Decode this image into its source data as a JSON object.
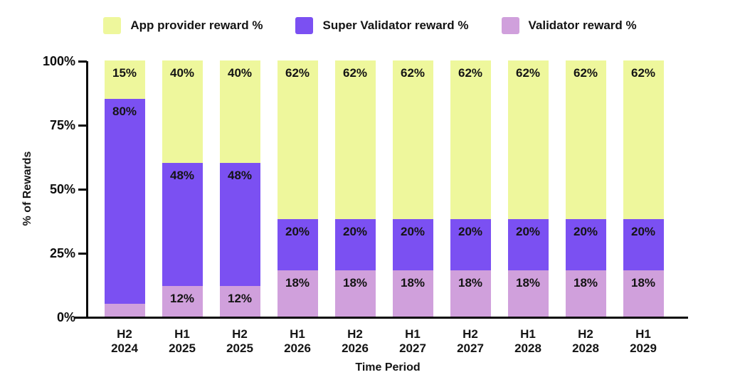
{
  "page": {
    "background": "#ffffff",
    "text_color": "#141414",
    "axis_color": "#0a0a0a"
  },
  "legend": {
    "items": [
      {
        "label": "App provider reward %",
        "color": "#eef79c"
      },
      {
        "label": "Super Validator reward %",
        "color": "#7b50f2"
      },
      {
        "label": "Validator reward %",
        "color": "#d0a0dc"
      }
    ]
  },
  "chart_data": {
    "type": "bar",
    "stacked": true,
    "xlabel": "Time Period",
    "ylabel": "% of Rewards",
    "ylim": [
      0,
      100
    ],
    "grid": false,
    "legend_position": "top",
    "categories": [
      "H2 2024",
      "H1 2025",
      "H2 2025",
      "H1 2026",
      "H2 2026",
      "H1 2027",
      "H2 2027",
      "H1 2028",
      "H2 2028",
      "H1 2029"
    ],
    "yticks": [
      {
        "value": 0,
        "label": "0%"
      },
      {
        "value": 25,
        "label": "25%"
      },
      {
        "value": 50,
        "label": "50%"
      },
      {
        "value": 75,
        "label": "75%"
      },
      {
        "value": 100,
        "label": "100%"
      }
    ],
    "series": [
      {
        "name": "Validator reward %",
        "color": "#d0a0dc",
        "values": [
          5,
          12,
          12,
          18,
          18,
          18,
          18,
          18,
          18,
          18
        ]
      },
      {
        "name": "Super Validator reward %",
        "color": "#7b50f2",
        "values": [
          80,
          48,
          48,
          20,
          20,
          20,
          20,
          20,
          20,
          20
        ]
      },
      {
        "name": "App provider reward %",
        "color": "#eef79c",
        "values": [
          15,
          40,
          40,
          62,
          62,
          62,
          62,
          62,
          62,
          62
        ]
      }
    ],
    "bar_label_suffix": "%",
    "bar_label_color": "#141414",
    "small_segment_label_color": "#d4a9ec"
  }
}
